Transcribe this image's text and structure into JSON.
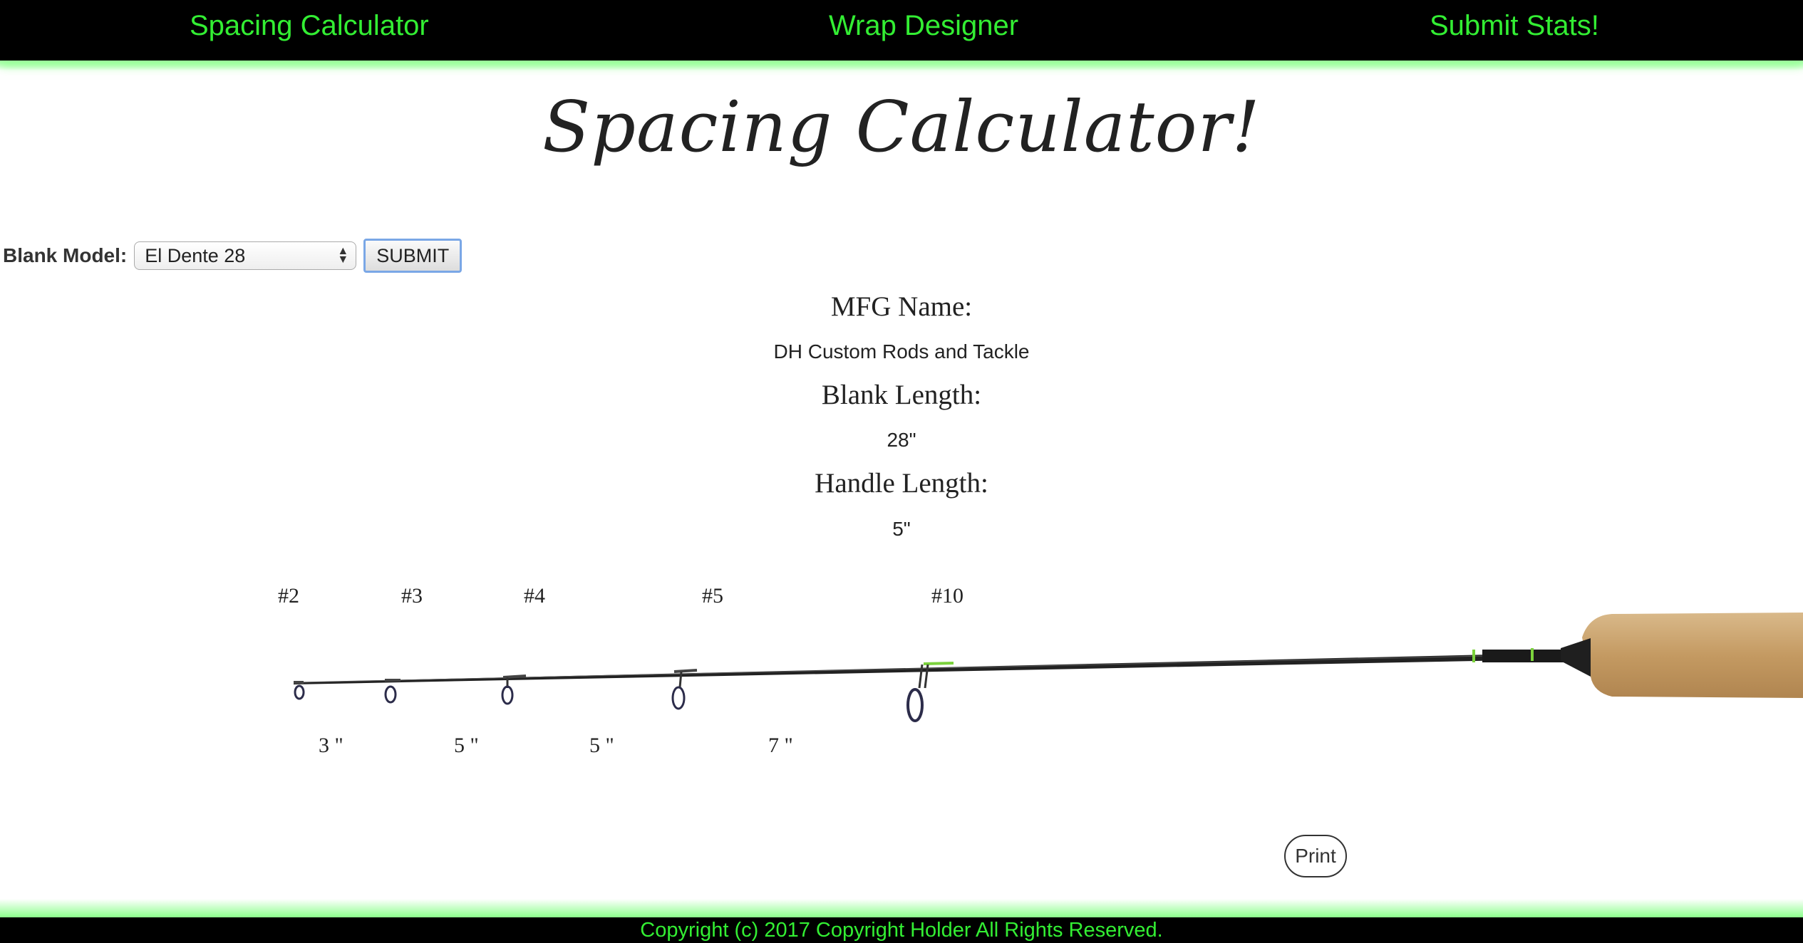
{
  "nav": {
    "items": [
      "Spacing Calculator",
      "Wrap Designer",
      "Submit Stats!"
    ]
  },
  "page": {
    "title": "Spacing Calculator!"
  },
  "form": {
    "label": "Blank Model:",
    "selected": "El Dente 28",
    "submit_label": "SUBMIT"
  },
  "info": {
    "mfg_label": "MFG Name:",
    "mfg_value": "DH Custom Rods and Tackle",
    "blank_label": "Blank Length:",
    "blank_value": "28\"",
    "handle_label": "Handle Length:",
    "handle_value": "5\""
  },
  "guides": {
    "labels": [
      "#2",
      "#3",
      "#4",
      "#5",
      "#10"
    ],
    "spacings": [
      "3 \"",
      "5 \"",
      "5 \"",
      "7 \""
    ]
  },
  "print_label": "Print",
  "footer": "Copyright (c) 2017 Copyright Holder All Rights Reserved.",
  "colors": {
    "accent": "#33ee33",
    "bar": "#000000"
  }
}
